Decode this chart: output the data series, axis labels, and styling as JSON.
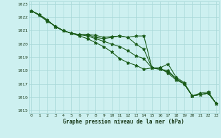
{
  "title": "Graphe pression niveau de la mer (hPa)",
  "background_color": "#cdf0f0",
  "grid_color": "#a8d8d8",
  "line_color": "#1a5c1a",
  "xlim": [
    -0.3,
    23.3
  ],
  "ylim": [
    1014.8,
    1023.2
  ],
  "yticks": [
    1015,
    1016,
    1017,
    1018,
    1019,
    1020,
    1021,
    1022,
    1023
  ],
  "xticks": [
    0,
    1,
    2,
    3,
    4,
    5,
    6,
    7,
    8,
    9,
    10,
    11,
    12,
    13,
    14,
    15,
    16,
    17,
    18,
    19,
    20,
    21,
    22,
    23
  ],
  "series": [
    [
      1022.5,
      1022.2,
      1021.8,
      1021.3,
      1021.0,
      1020.8,
      1020.7,
      1020.7,
      1020.65,
      1020.5,
      1020.55,
      1020.6,
      1020.5,
      1020.6,
      1020.6,
      1018.2,
      1018.2,
      1018.5,
      1017.5,
      1017.1,
      1016.1,
      1016.3,
      1016.4,
      1015.5
    ],
    [
      1022.5,
      1022.2,
      1021.8,
      1021.3,
      1021.0,
      1020.8,
      1020.7,
      1020.7,
      1020.5,
      1020.4,
      1020.5,
      1020.6,
      1020.5,
      1020.0,
      1019.6,
      1018.2,
      1018.1,
      1018.0,
      1017.4,
      1017.0,
      1016.1,
      1016.2,
      1016.3,
      1015.5
    ],
    [
      1022.5,
      1022.2,
      1021.8,
      1021.3,
      1021.0,
      1020.8,
      1020.7,
      1020.6,
      1020.4,
      1020.2,
      1020.0,
      1019.8,
      1019.5,
      1019.1,
      1018.9,
      1018.2,
      1018.1,
      1017.9,
      1017.4,
      1017.0,
      1016.1,
      1016.2,
      1016.3,
      1015.5
    ],
    [
      1022.5,
      1022.15,
      1021.7,
      1021.35,
      1021.0,
      1020.8,
      1020.6,
      1020.4,
      1020.1,
      1019.8,
      1019.4,
      1018.9,
      1018.6,
      1018.4,
      1018.1,
      1018.2,
      1018.2,
      1017.8,
      1017.3,
      1017.0,
      1016.1,
      1016.2,
      1016.3,
      1015.5
    ]
  ]
}
